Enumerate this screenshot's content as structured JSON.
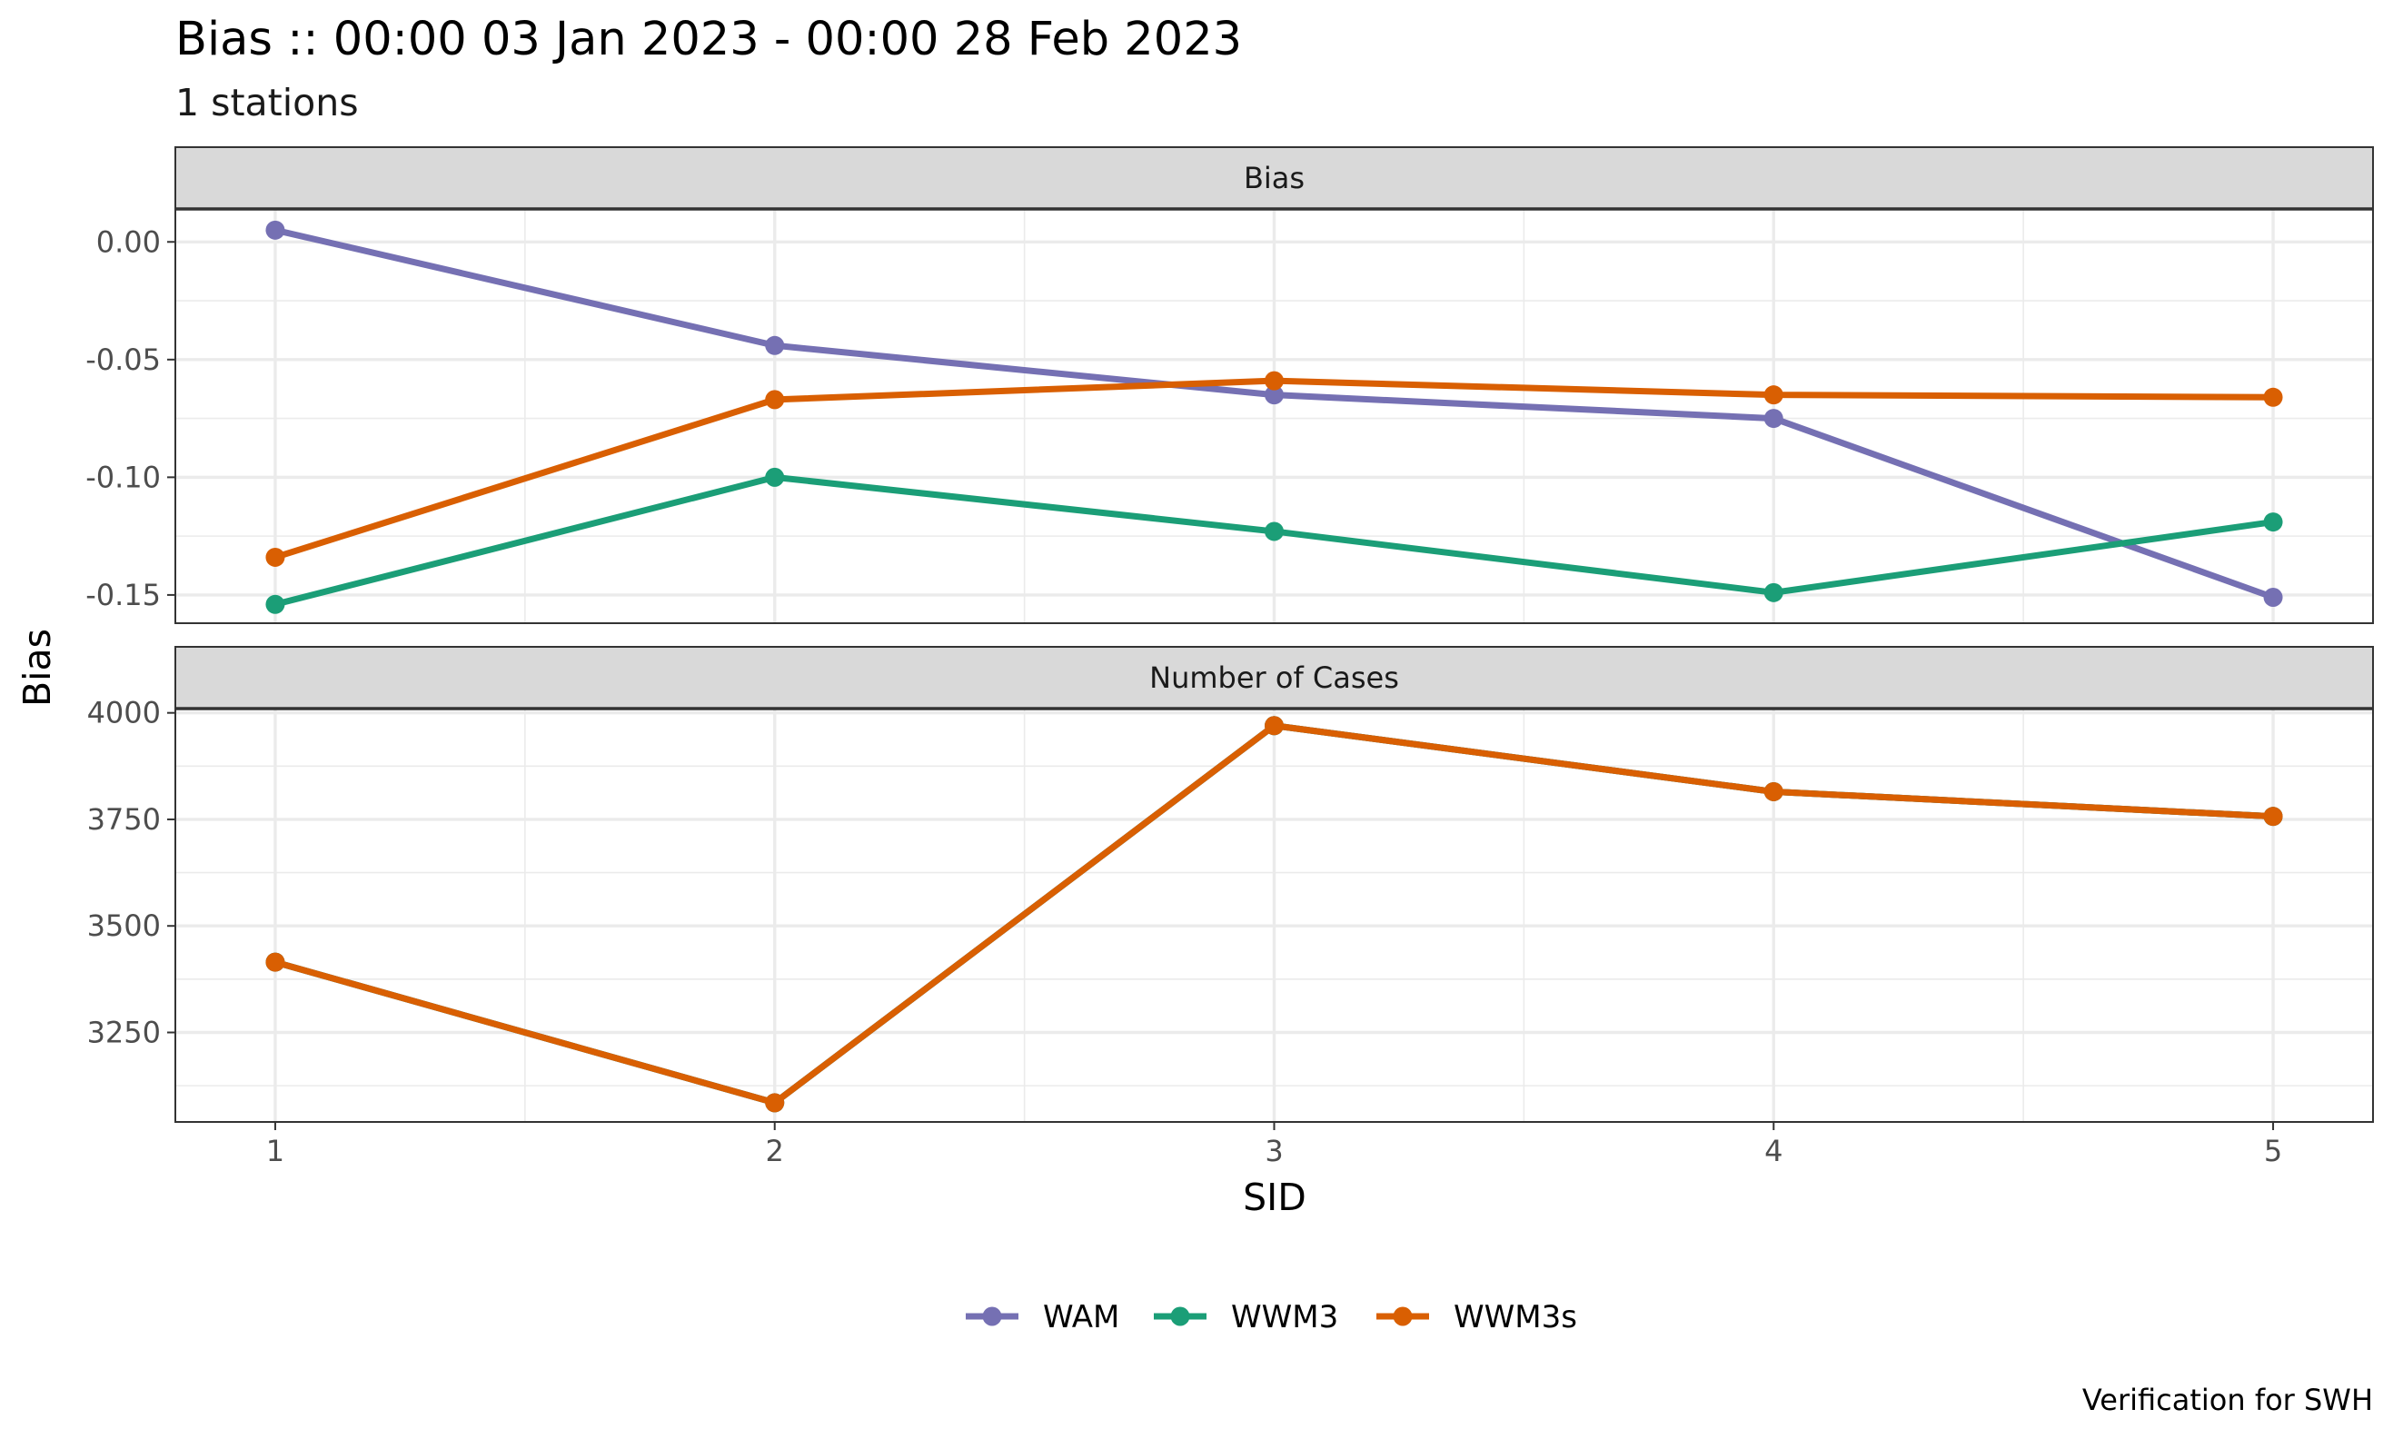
{
  "chart_data": {
    "type": "line",
    "title": "Bias :: 00:00 03 Jan 2023 - 00:00 28 Feb 2023",
    "subtitle": "1 stations",
    "caption": "Verification for SWH",
    "xlabel": "SID",
    "ylabel": "Bias",
    "x": [
      1,
      2,
      3,
      4,
      5
    ],
    "x_tick_labels": [
      "1",
      "2",
      "3",
      "4",
      "5"
    ],
    "legend_position": "bottom",
    "grid": true,
    "panels": [
      {
        "strip_label": "Bias",
        "ylim": [
          -0.162,
          0.014
        ],
        "y_ticks": [
          0.0,
          -0.05,
          -0.1,
          -0.15
        ],
        "y_tick_labels": [
          "0.00",
          "-0.05",
          "-0.10",
          "-0.15"
        ],
        "series": [
          {
            "name": "WAM",
            "values": [
              0.005,
              -0.044,
              -0.065,
              -0.075,
              -0.151
            ]
          },
          {
            "name": "WWM3",
            "values": [
              -0.154,
              -0.1,
              -0.123,
              -0.149,
              -0.119
            ]
          },
          {
            "name": "WWM3s",
            "values": [
              -0.134,
              -0.067,
              -0.059,
              -0.065,
              -0.066
            ]
          }
        ]
      },
      {
        "strip_label": "Number of Cases",
        "ylim": [
          3040,
          4010
        ],
        "y_ticks": [
          4000,
          3750,
          3500,
          3250
        ],
        "y_tick_labels": [
          "4000",
          "3750",
          "3500",
          "3250"
        ],
        "series": [
          {
            "name": "WAM",
            "values": [
              3415,
              3085,
              3970,
              3815,
              3757
            ]
          },
          {
            "name": "WWM3",
            "values": [
              3415,
              3085,
              3970,
              3815,
              3757
            ]
          },
          {
            "name": "WWM3s",
            "values": [
              3415,
              3085,
              3970,
              3815,
              3757
            ]
          }
        ]
      }
    ],
    "legend": [
      {
        "name": "WAM",
        "color": "#7570b3"
      },
      {
        "name": "WWM3",
        "color": "#1b9e77"
      },
      {
        "name": "WWM3s",
        "color": "#d95f02"
      }
    ],
    "colors": {
      "WAM": "#7570b3",
      "WWM3": "#1b9e77",
      "WWM3s": "#d95f02",
      "strip_fill": "#d9d9d9",
      "grid": "#ebebeb",
      "panel_border": "#333333"
    }
  }
}
